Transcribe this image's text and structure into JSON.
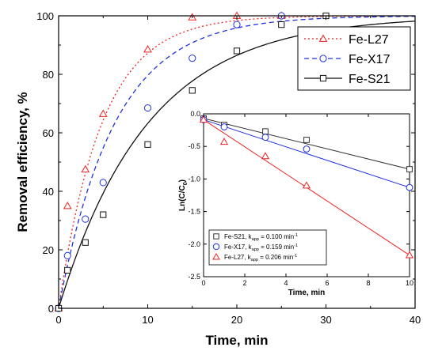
{
  "chart_data": [
    {
      "type": "scatter",
      "xlabel": "Time, min",
      "ylabel": "Removal efficiency, %",
      "xlim": [
        0,
        40
      ],
      "ylim": [
        0,
        100
      ],
      "xticks": [
        0,
        10,
        20,
        30,
        40
      ],
      "yticks": [
        0,
        20,
        40,
        60,
        80,
        100
      ],
      "grid": false,
      "legend_position": "top-right",
      "series": [
        {
          "name": "Fe-L27",
          "color": "#ee2222",
          "marker": "triangle",
          "line_style": "dotted",
          "x": [
            0,
            1,
            3,
            5,
            10,
            15,
            20,
            25
          ],
          "y": [
            0,
            35,
            47.5,
            66.5,
            88.5,
            99.5,
            100,
            100
          ],
          "fit_rate": 0.206
        },
        {
          "name": "Fe-X17",
          "color": "#2233dd",
          "marker": "circle",
          "line_style": "dashed",
          "x": [
            0,
            1,
            3,
            5,
            10,
            15,
            20,
            25
          ],
          "y": [
            0,
            18,
            30.5,
            43,
            68.5,
            85.5,
            97,
            100
          ],
          "fit_rate": 0.159
        },
        {
          "name": "Fe-S21",
          "color": "#111111",
          "marker": "square",
          "line_style": "solid",
          "x": [
            0,
            1,
            3,
            5,
            10,
            15,
            20,
            25,
            30
          ],
          "y": [
            0,
            13,
            22.5,
            32,
            56,
            74.5,
            88,
            97,
            100
          ],
          "fit_rate": 0.1
        }
      ]
    },
    {
      "type": "scatter",
      "xlabel": "Time, min",
      "ylabel": "Ln(C/C0)",
      "xlim": [
        0,
        10
      ],
      "ylim": [
        -2.5,
        0.0
      ],
      "xticks": [
        0,
        2,
        4,
        6,
        8,
        10
      ],
      "yticks": [
        0.0,
        -0.5,
        -1.0,
        -1.5,
        -2.0,
        -2.5
      ],
      "grid": false,
      "legend_position": "bottom-left",
      "series": [
        {
          "name": "Fe-S21, kapp = 0.100 min-1",
          "label_parts": [
            "Fe-S21, k",
            "app",
            " = 0.100 min",
            "-1"
          ],
          "color": "#333333",
          "marker": "square",
          "x": [
            0,
            1,
            3,
            5,
            10
          ],
          "y": [
            -0.07,
            -0.17,
            -0.27,
            -0.4,
            -0.85
          ],
          "fit": [
            -0.07,
            -0.85
          ]
        },
        {
          "name": "Fe-X17, kapp = 0.159 min-1",
          "label_parts": [
            "Fe-X17, k",
            "app",
            " = 0.159 min",
            "-1"
          ],
          "color": "#1f2ee0",
          "marker": "circle",
          "x": [
            0,
            1,
            3,
            5,
            10
          ],
          "y": [
            -0.09,
            -0.2,
            -0.36,
            -0.54,
            -1.13
          ],
          "fit": [
            -0.09,
            -1.13
          ]
        },
        {
          "name": "Fe-L27, kapp = 0.206 min-1",
          "label_parts": [
            "Fe-L27, k",
            "app",
            " = 0.206 min",
            "-1"
          ],
          "color": "#ee2222",
          "marker": "triangle",
          "x": [
            0,
            1,
            3,
            5,
            10
          ],
          "y": [
            -0.09,
            -0.43,
            -0.65,
            -1.1,
            -2.17
          ],
          "fit": [
            -0.09,
            -2.17
          ]
        }
      ]
    }
  ]
}
